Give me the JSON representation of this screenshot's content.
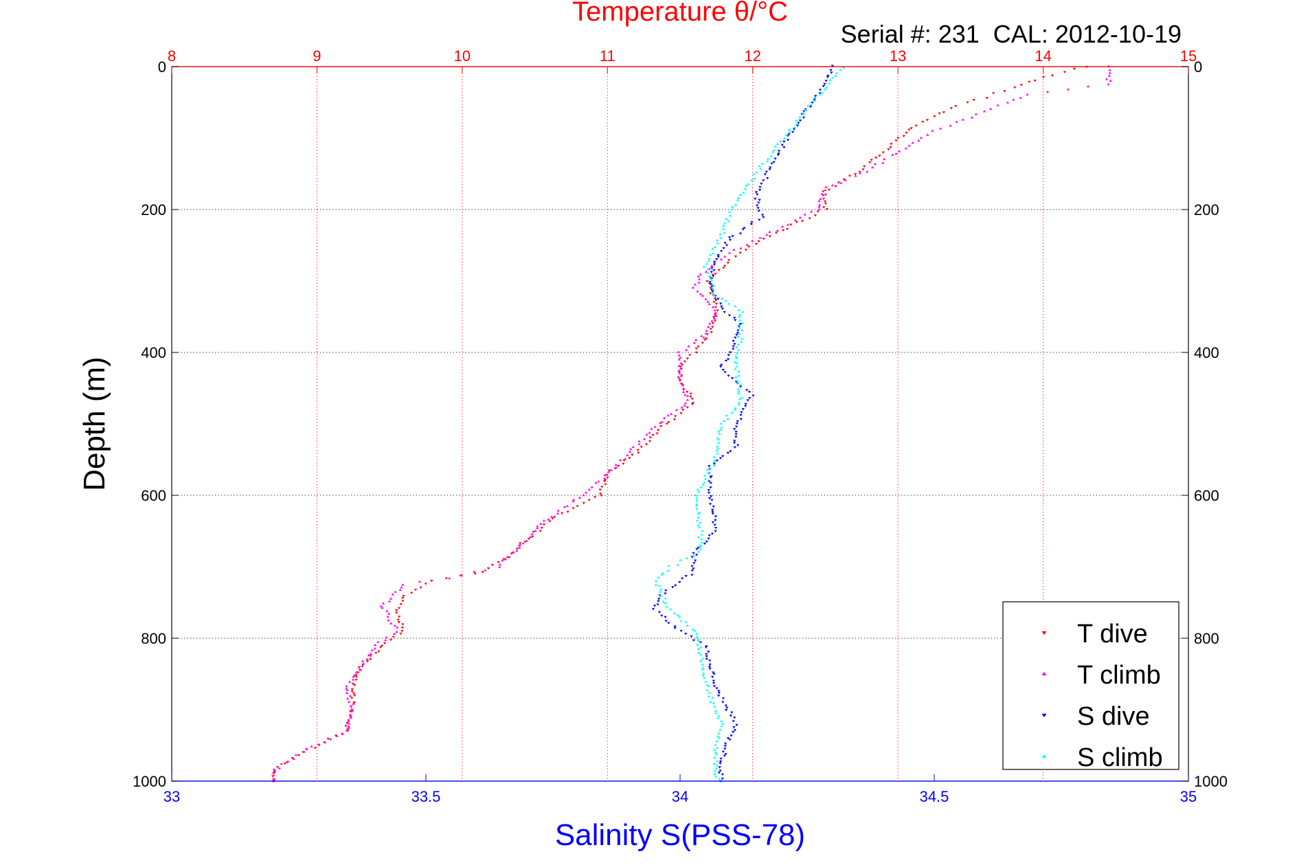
{
  "chart_data": {
    "type": "scatter",
    "title": "Temperature θ/°C",
    "subtitle": "Serial #: 231  CAL: 2012-10-19",
    "ylabel": "Depth (m)",
    "xlabel_bottom": "Salinity S(PSS-78)",
    "ylim": [
      0,
      1000
    ],
    "y_reversed": true,
    "y_ticks": [
      0,
      200,
      400,
      600,
      800,
      1000
    ],
    "x_top": {
      "variable": "temperature",
      "lim": [
        8,
        15
      ],
      "ticks": [
        8,
        9,
        10,
        11,
        12,
        13,
        14,
        15
      ],
      "color": "#ff0000"
    },
    "x_bottom": {
      "variable": "salinity",
      "lim": [
        33,
        35
      ],
      "ticks": [
        33,
        33.5,
        34,
        34.5,
        35
      ],
      "color": "#0000ff"
    },
    "grid": true,
    "legend_position": "bottom-right",
    "series": [
      {
        "name": "T dive",
        "axis": "top",
        "color": "#ff0000",
        "marker": "triangle-down",
        "points": [
          [
            14.3,
            0
          ],
          [
            14.0,
            15
          ],
          [
            13.8,
            30
          ],
          [
            13.4,
            55
          ],
          [
            13.1,
            85
          ],
          [
            12.9,
            120
          ],
          [
            12.7,
            150
          ],
          [
            12.5,
            175
          ],
          [
            12.5,
            200
          ],
          [
            12.35,
            215
          ],
          [
            12.05,
            245
          ],
          [
            11.85,
            270
          ],
          [
            11.7,
            300
          ],
          [
            11.75,
            340
          ],
          [
            11.7,
            375
          ],
          [
            11.6,
            400
          ],
          [
            11.5,
            420
          ],
          [
            11.5,
            440
          ],
          [
            11.6,
            470
          ],
          [
            11.4,
            500
          ],
          [
            11.2,
            540
          ],
          [
            11.0,
            570
          ],
          [
            10.95,
            600
          ],
          [
            10.65,
            630
          ],
          [
            10.45,
            660
          ],
          [
            10.3,
            690
          ],
          [
            10.1,
            710
          ],
          [
            9.8,
            720
          ],
          [
            9.6,
            740
          ],
          [
            9.55,
            765
          ],
          [
            9.6,
            790
          ],
          [
            9.45,
            810
          ],
          [
            9.3,
            840
          ],
          [
            9.25,
            870
          ],
          [
            9.25,
            900
          ],
          [
            9.2,
            930
          ],
          [
            8.9,
            960
          ],
          [
            8.7,
            985
          ],
          [
            8.7,
            1000
          ]
        ]
      },
      {
        "name": "T climb",
        "axis": "top",
        "color": "#ff00ff",
        "marker": "triangle-up",
        "points": [
          [
            14.45,
            0
          ],
          [
            14.45,
            25
          ],
          [
            13.9,
            40
          ],
          [
            13.5,
            70
          ],
          [
            13.2,
            95
          ],
          [
            12.95,
            125
          ],
          [
            12.75,
            150
          ],
          [
            12.5,
            170
          ],
          [
            12.45,
            200
          ],
          [
            12.25,
            220
          ],
          [
            12.0,
            245
          ],
          [
            11.8,
            265
          ],
          [
            11.65,
            290
          ],
          [
            11.6,
            310
          ],
          [
            11.75,
            345
          ],
          [
            11.65,
            380
          ],
          [
            11.5,
            400
          ],
          [
            11.5,
            430
          ],
          [
            11.55,
            470
          ],
          [
            11.35,
            500
          ],
          [
            11.15,
            540
          ],
          [
            10.95,
            580
          ],
          [
            10.75,
            610
          ],
          [
            10.55,
            640
          ],
          [
            10.4,
            670
          ],
          [
            10.25,
            700
          ],
          [
            9.9,
            715
          ],
          [
            9.6,
            725
          ],
          [
            9.45,
            755
          ],
          [
            9.55,
            790
          ],
          [
            9.4,
            810
          ],
          [
            9.3,
            840
          ],
          [
            9.2,
            870
          ],
          [
            9.25,
            900
          ],
          [
            9.2,
            930
          ],
          [
            8.9,
            960
          ],
          [
            8.7,
            985
          ],
          [
            8.7,
            1000
          ]
        ]
      },
      {
        "name": "S dive",
        "axis": "bottom",
        "color": "#0000ff",
        "marker": "triangle-down",
        "points": [
          [
            34.3,
            0
          ],
          [
            34.27,
            40
          ],
          [
            34.22,
            90
          ],
          [
            34.18,
            140
          ],
          [
            34.15,
            180
          ],
          [
            34.16,
            210
          ],
          [
            34.1,
            240
          ],
          [
            34.07,
            270
          ],
          [
            34.06,
            300
          ],
          [
            34.08,
            340
          ],
          [
            34.12,
            360
          ],
          [
            34.1,
            400
          ],
          [
            34.08,
            420
          ],
          [
            34.14,
            460
          ],
          [
            34.11,
            500
          ],
          [
            34.11,
            530
          ],
          [
            34.06,
            560
          ],
          [
            34.06,
            600
          ],
          [
            34.07,
            650
          ],
          [
            34.03,
            680
          ],
          [
            34.02,
            710
          ],
          [
            33.96,
            740
          ],
          [
            33.95,
            760
          ],
          [
            34.0,
            790
          ],
          [
            34.05,
            810
          ],
          [
            34.06,
            840
          ],
          [
            34.07,
            870
          ],
          [
            34.11,
            920
          ],
          [
            34.09,
            950
          ],
          [
            34.08,
            980
          ],
          [
            34.08,
            1000
          ]
        ]
      },
      {
        "name": "S climb",
        "axis": "bottom",
        "color": "#00ffff",
        "marker": "triangle-up",
        "points": [
          [
            34.32,
            0
          ],
          [
            34.25,
            60
          ],
          [
            34.18,
            120
          ],
          [
            34.14,
            160
          ],
          [
            34.1,
            200
          ],
          [
            34.08,
            240
          ],
          [
            34.05,
            280
          ],
          [
            34.07,
            320
          ],
          [
            34.12,
            340
          ],
          [
            34.12,
            370
          ],
          [
            34.11,
            420
          ],
          [
            34.12,
            470
          ],
          [
            34.08,
            500
          ],
          [
            34.07,
            550
          ],
          [
            34.03,
            600
          ],
          [
            34.04,
            650
          ],
          [
            34.04,
            680
          ],
          [
            33.98,
            700
          ],
          [
            33.95,
            720
          ],
          [
            33.98,
            760
          ],
          [
            34.03,
            790
          ],
          [
            34.04,
            820
          ],
          [
            34.05,
            860
          ],
          [
            34.08,
            920
          ],
          [
            34.07,
            960
          ],
          [
            34.07,
            990
          ],
          [
            34.08,
            1000
          ]
        ]
      }
    ]
  }
}
